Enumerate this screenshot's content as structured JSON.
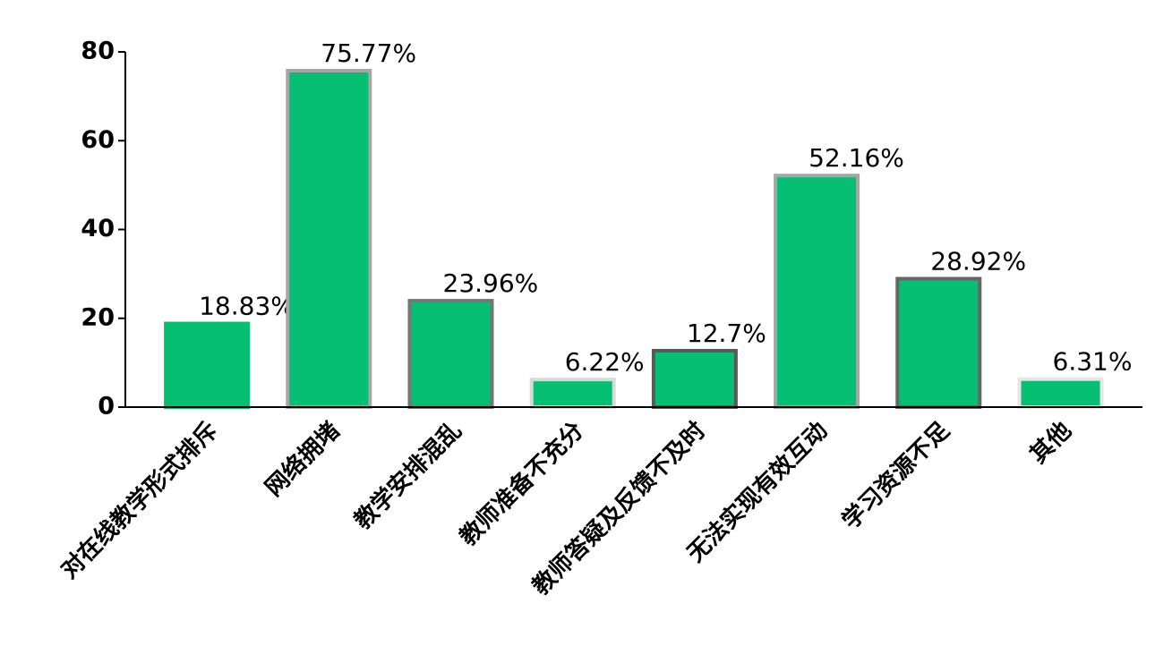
{
  "chart_data": {
    "type": "bar",
    "categories": [
      "对在线教学形式排斥",
      "网络拥堵",
      "教学安排混乱",
      "教师准备不充分",
      "教师答疑及反馈不及时",
      "无法实现有效互动",
      "学习资源不足",
      "其他"
    ],
    "values": [
      18.83,
      75.77,
      23.96,
      6.22,
      12.7,
      52.16,
      28.92,
      6.31
    ],
    "value_labels": [
      "18.83%",
      "75.77%",
      "23.96%",
      "6.22%",
      "12.7%",
      "52.16%",
      "28.92%",
      "6.31%"
    ],
    "color": "#07bf73",
    "edge_colors": [
      "#07bf73",
      "#a6a6a6",
      "#767676",
      "#d9d9d9",
      "#595959",
      "#a6a6a6",
      "#666666",
      "#e6e6e6"
    ],
    "ylim": [
      0,
      80
    ],
    "yticks": [
      0,
      20,
      40,
      60,
      80
    ],
    "grid": false
  }
}
